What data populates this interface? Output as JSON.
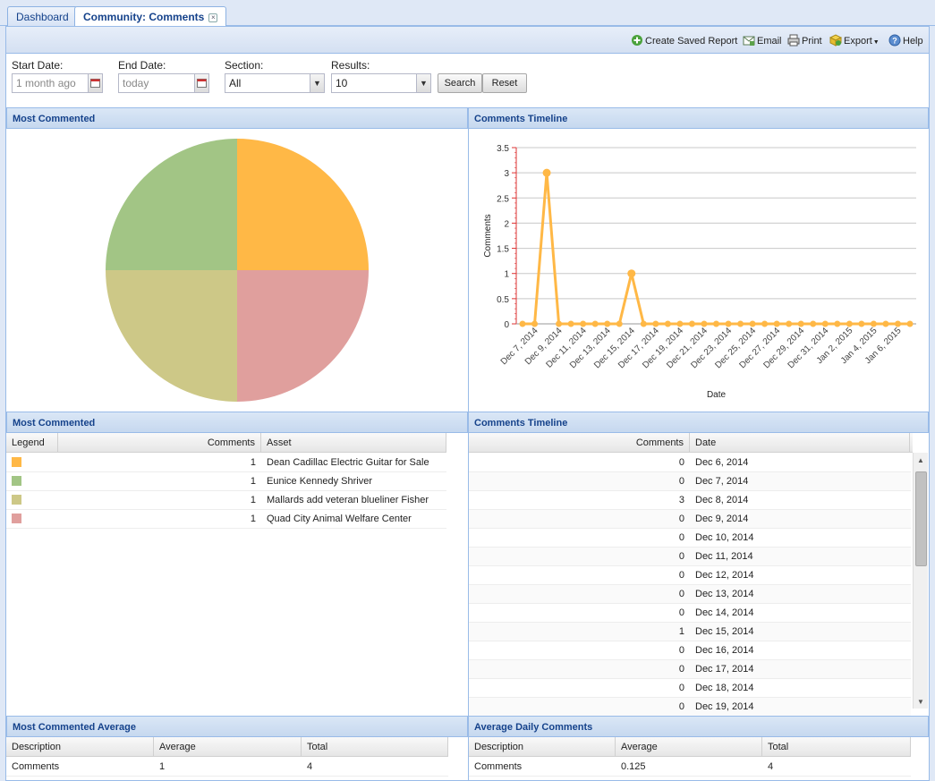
{
  "tabs": [
    {
      "label": "Dashboard",
      "active": false
    },
    {
      "label": "Community: Comments",
      "active": true
    }
  ],
  "toolbar": {
    "create_saved_report": "Create Saved Report",
    "email": "Email",
    "print": "Print",
    "export": "Export",
    "help": "Help"
  },
  "filters": {
    "start_date_label": "Start Date:",
    "start_date_value": "1 month ago",
    "end_date_label": "End Date:",
    "end_date_value": "today",
    "section_label": "Section:",
    "section_value": "All",
    "results_label": "Results:",
    "results_value": "10",
    "search_label": "Search",
    "reset_label": "Reset"
  },
  "panels": {
    "pie_title": "Most Commented",
    "timeline_title": "Comments Timeline",
    "grid_title": "Most Commented",
    "timeline_grid_title": "Comments Timeline",
    "avg_title": "Most Commented Average",
    "daily_avg_title": "Average Daily Comments"
  },
  "most_commented": {
    "columns": [
      "Legend",
      "Comments",
      "Asset"
    ],
    "rows": [
      {
        "color": "#ffb846",
        "comments": "1",
        "asset": "Dean Cadillac Electric Guitar for Sale"
      },
      {
        "color": "#a2c585",
        "comments": "1",
        "asset": "Eunice Kennedy Shriver"
      },
      {
        "color": "#cdc887",
        "comments": "1",
        "asset": "Mallards add veteran blueliner Fisher"
      },
      {
        "color": "#e09f9d",
        "comments": "1",
        "asset": "Quad City Animal Welfare Center"
      }
    ]
  },
  "timeline_grid": {
    "columns": [
      "Comments",
      "Date"
    ],
    "rows": [
      {
        "comments": "0",
        "date": "Dec 6, 2014"
      },
      {
        "comments": "0",
        "date": "Dec 7, 2014"
      },
      {
        "comments": "3",
        "date": "Dec 8, 2014"
      },
      {
        "comments": "0",
        "date": "Dec 9, 2014"
      },
      {
        "comments": "0",
        "date": "Dec 10, 2014"
      },
      {
        "comments": "0",
        "date": "Dec 11, 2014"
      },
      {
        "comments": "0",
        "date": "Dec 12, 2014"
      },
      {
        "comments": "0",
        "date": "Dec 13, 2014"
      },
      {
        "comments": "0",
        "date": "Dec 14, 2014"
      },
      {
        "comments": "1",
        "date": "Dec 15, 2014"
      },
      {
        "comments": "0",
        "date": "Dec 16, 2014"
      },
      {
        "comments": "0",
        "date": "Dec 17, 2014"
      },
      {
        "comments": "0",
        "date": "Dec 18, 2014"
      },
      {
        "comments": "0",
        "date": "Dec 19, 2014"
      }
    ]
  },
  "avg_grid": {
    "columns": [
      "Description",
      "Average",
      "Total"
    ],
    "row": {
      "description": "Comments",
      "average": "1",
      "total": "4"
    }
  },
  "daily_avg_grid": {
    "columns": [
      "Description",
      "Average",
      "Total"
    ],
    "row": {
      "description": "Comments",
      "average": "0.125",
      "total": "4"
    }
  },
  "chart_data": [
    {
      "type": "pie",
      "title": "",
      "slices": [
        {
          "label": "Dean Cadillac Electric Guitar for Sale",
          "value": 1,
          "color": "#ffb846"
        },
        {
          "label": "Quad City Animal Welfare Center",
          "value": 1,
          "color": "#e09f9d"
        },
        {
          "label": "Mallards add veteran blueliner Fisher",
          "value": 1,
          "color": "#cdc887"
        },
        {
          "label": "Eunice Kennedy Shriver",
          "value": 1,
          "color": "#a2c585"
        }
      ]
    },
    {
      "type": "line",
      "title": "",
      "xlabel": "Date",
      "ylabel": "Comments",
      "ylim": [
        0,
        3.5
      ],
      "yticks": [
        "0",
        "0.5",
        "1",
        "1.5",
        "2",
        "2.5",
        "3",
        "3.5"
      ],
      "color": "#ffb846",
      "xtick_labels": [
        "Dec 7, 2014",
        "Dec 9, 2014",
        "Dec 11, 2014",
        "Dec 13, 2014",
        "Dec 15, 2014",
        "Dec 17, 2014",
        "Dec 19, 2014",
        "Dec 21, 2014",
        "Dec 23, 2014",
        "Dec 25, 2014",
        "Dec 27, 2014",
        "Dec 29, 2014",
        "Dec 31, 2014",
        "Jan 2, 2015",
        "Jan 4, 2015",
        "Jan 6, 2015"
      ],
      "x": [
        "Dec 6, 2014",
        "Dec 7, 2014",
        "Dec 8, 2014",
        "Dec 9, 2014",
        "Dec 10, 2014",
        "Dec 11, 2014",
        "Dec 12, 2014",
        "Dec 13, 2014",
        "Dec 14, 2014",
        "Dec 15, 2014",
        "Dec 16, 2014",
        "Dec 17, 2014",
        "Dec 18, 2014",
        "Dec 19, 2014",
        "Dec 20, 2014",
        "Dec 21, 2014",
        "Dec 22, 2014",
        "Dec 23, 2014",
        "Dec 24, 2014",
        "Dec 25, 2014",
        "Dec 26, 2014",
        "Dec 27, 2014",
        "Dec 28, 2014",
        "Dec 29, 2014",
        "Dec 30, 2014",
        "Dec 31, 2014",
        "Jan 1, 2015",
        "Jan 2, 2015",
        "Jan 3, 2015",
        "Jan 4, 2015",
        "Jan 5, 2015",
        "Jan 6, 2015",
        "Jan 7, 2015"
      ],
      "y": [
        0,
        0,
        3,
        0,
        0,
        0,
        0,
        0,
        0,
        1,
        0,
        0,
        0,
        0,
        0,
        0,
        0,
        0,
        0,
        0,
        0,
        0,
        0,
        0,
        0,
        0,
        0,
        0,
        0,
        0,
        0,
        0,
        0
      ]
    }
  ]
}
